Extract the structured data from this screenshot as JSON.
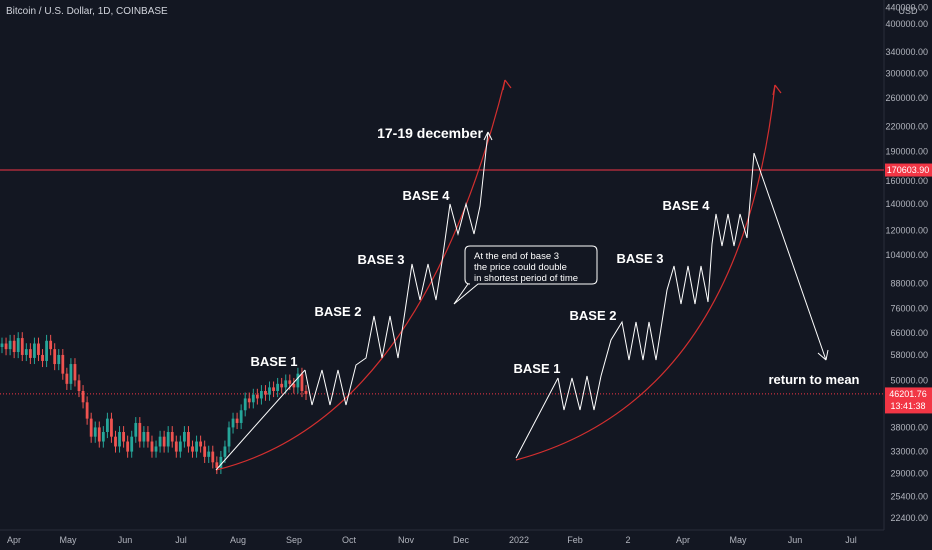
{
  "header": {
    "symbol": "Bitcoin / U.S. Dollar, 1D, COINBASE",
    "currency": "USD"
  },
  "chart_data": {
    "type": "candlestick",
    "title": "Bitcoin / U.S. Dollar, 1D, COINBASE",
    "y_scale": "log",
    "ylim": [
      21000,
      500000
    ],
    "x_ticks": [
      "Apr",
      "May",
      "Jun",
      "Jul",
      "Aug",
      "Sep",
      "Oct",
      "Nov",
      "Dec",
      "2022",
      "Feb",
      "2",
      "Apr",
      "May",
      "Jun",
      "Jul"
    ],
    "y_ticks": [
      {
        "label": "440000.00",
        "value": 440000
      },
      {
        "label": "400000.00",
        "value": 400000
      },
      {
        "label": "340000.00",
        "value": 340000
      },
      {
        "label": "300000.00",
        "value": 300000
      },
      {
        "label": "260000.00",
        "value": 260000
      },
      {
        "label": "220000.00",
        "value": 220000
      },
      {
        "label": "190000.00",
        "value": 190000
      },
      {
        "label": "160000.00",
        "value": 160000
      },
      {
        "label": "140000.00",
        "value": 140000
      },
      {
        "label": "120000.00",
        "value": 120000
      },
      {
        "label": "104000.00",
        "value": 104000
      },
      {
        "label": "88000.00",
        "value": 88000
      },
      {
        "label": "76000.00",
        "value": 76000
      },
      {
        "label": "66000.00",
        "value": 66000
      },
      {
        "label": "58000.00",
        "value": 58000
      },
      {
        "label": "50000.00",
        "value": 50000
      },
      {
        "label": "38000.00",
        "value": 38000
      },
      {
        "label": "33000.00",
        "value": 33000
      },
      {
        "label": "29000.00",
        "value": 29000
      },
      {
        "label": "25400.00",
        "value": 25400
      },
      {
        "label": "22400.00",
        "value": 22400
      }
    ],
    "horizontal_line": {
      "label": "170603.90",
      "value": 170603.9,
      "color": "#f23645"
    },
    "current_price": {
      "label": "46201.76",
      "value": 46201.76,
      "countdown": "13:41:38",
      "color": "#f23645"
    },
    "price_path": [
      62000,
      60000,
      63000,
      59000,
      64000,
      58000,
      60000,
      57000,
      62000,
      58000,
      56000,
      63000,
      60000,
      55000,
      58000,
      52000,
      49000,
      55000,
      50000,
      47000,
      44000,
      40000,
      36000,
      38000,
      35000,
      37000,
      40000,
      36000,
      34000,
      37000,
      35000,
      33000,
      36000,
      39000,
      35000,
      37000,
      35000,
      33000,
      34000,
      36000,
      34000,
      37000,
      35000,
      33000,
      35000,
      37000,
      34000,
      33000,
      35000,
      34000,
      32000,
      33000,
      31000,
      30000,
      32000,
      34000,
      38000,
      40000,
      39000,
      42000,
      45000,
      44000,
      46000,
      45000,
      47000,
      46000,
      48000,
      47000,
      49000,
      48000,
      50000,
      49000,
      48000,
      52000,
      47000,
      46201.76
    ],
    "annotations": {
      "left_bases": [
        "BASE 1",
        "BASE 2",
        "BASE 3",
        "BASE 4"
      ],
      "right_bases": [
        "BASE 1",
        "BASE 2",
        "BASE 3",
        "BASE 4"
      ],
      "target_date": "17-19 december",
      "callout_lines": [
        "At the end of base 3",
        "the price could double",
        "in shortest period of time"
      ],
      "return_label": "return to mean"
    },
    "colors": {
      "background": "#131722",
      "up": "#26a69a",
      "down": "#ef5350",
      "curve": "#d32f2f",
      "drawing": "#ffffff",
      "axis_text": "#b2b5be"
    }
  }
}
